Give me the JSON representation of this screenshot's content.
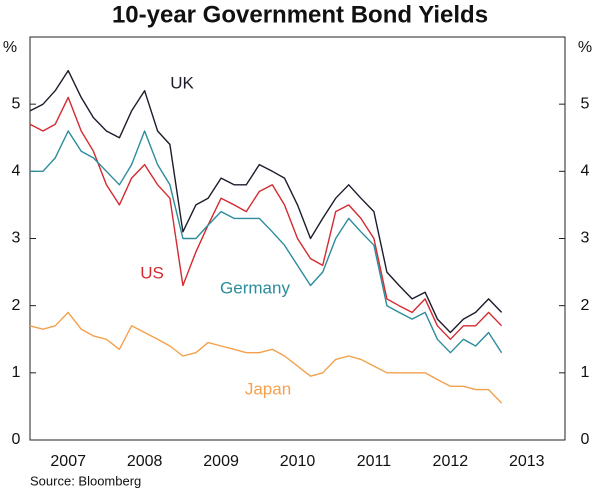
{
  "chart_data": {
    "type": "line",
    "title": "10-year Government Bond Yields",
    "y_label": "%",
    "source": "Source: Bloomberg",
    "x": [
      2007.0,
      2007.17,
      2007.33,
      2007.5,
      2007.67,
      2007.83,
      2008.0,
      2008.17,
      2008.33,
      2008.5,
      2008.67,
      2008.83,
      2009.0,
      2009.17,
      2009.33,
      2009.5,
      2009.67,
      2009.83,
      2010.0,
      2010.17,
      2010.33,
      2010.5,
      2010.67,
      2010.83,
      2011.0,
      2011.17,
      2011.33,
      2011.5,
      2011.67,
      2011.83,
      2012.0,
      2012.17,
      2012.33,
      2012.5,
      2012.67,
      2012.83,
      2013.0,
      2013.17
    ],
    "series": [
      {
        "name": "UK",
        "color": "#1c1c2c",
        "values": [
          4.9,
          5.0,
          5.2,
          5.5,
          5.1,
          4.8,
          4.6,
          4.5,
          4.9,
          5.2,
          4.6,
          4.4,
          3.1,
          3.5,
          3.6,
          3.9,
          3.8,
          3.8,
          4.1,
          4.0,
          3.9,
          3.5,
          3.0,
          3.3,
          3.6,
          3.8,
          3.6,
          3.4,
          2.5,
          2.3,
          2.1,
          2.2,
          1.8,
          1.6,
          1.8,
          1.9,
          2.1,
          1.9
        ]
      },
      {
        "name": "US",
        "color": "#d42a30",
        "values": [
          4.7,
          4.6,
          4.7,
          5.1,
          4.6,
          4.3,
          3.8,
          3.5,
          3.9,
          4.1,
          3.8,
          3.6,
          2.3,
          2.8,
          3.2,
          3.6,
          3.5,
          3.4,
          3.7,
          3.8,
          3.5,
          3.0,
          2.7,
          2.6,
          3.4,
          3.5,
          3.3,
          3.0,
          2.1,
          2.0,
          1.9,
          2.1,
          1.7,
          1.5,
          1.7,
          1.7,
          1.9,
          1.7
        ]
      },
      {
        "name": "Germany",
        "color": "#2b8c9c",
        "values": [
          4.0,
          4.0,
          4.2,
          4.6,
          4.3,
          4.2,
          4.0,
          3.8,
          4.1,
          4.6,
          4.1,
          3.8,
          3.0,
          3.0,
          3.2,
          3.4,
          3.3,
          3.3,
          3.3,
          3.1,
          2.9,
          2.6,
          2.3,
          2.5,
          3.0,
          3.3,
          3.1,
          2.9,
          2.0,
          1.9,
          1.8,
          1.9,
          1.5,
          1.3,
          1.5,
          1.4,
          1.6,
          1.3
        ]
      },
      {
        "name": "Japan",
        "color": "#f4a14c",
        "values": [
          1.7,
          1.65,
          1.7,
          1.9,
          1.65,
          1.55,
          1.5,
          1.35,
          1.7,
          1.6,
          1.5,
          1.4,
          1.25,
          1.3,
          1.45,
          1.4,
          1.35,
          1.3,
          1.3,
          1.35,
          1.25,
          1.1,
          0.95,
          1.0,
          1.2,
          1.25,
          1.2,
          1.1,
          1.0,
          1.0,
          1.0,
          1.0,
          0.9,
          0.8,
          0.8,
          0.75,
          0.75,
          0.55
        ]
      }
    ],
    "xlim": [
      2007,
      2014
    ],
    "xticks": [
      {
        "value": 2007.5,
        "label": "2007"
      },
      {
        "value": 2008.5,
        "label": "2008"
      },
      {
        "value": 2009.5,
        "label": "2009"
      },
      {
        "value": 2010.5,
        "label": "2010"
      },
      {
        "value": 2011.5,
        "label": "2011"
      },
      {
        "value": 2012.5,
        "label": "2012"
      },
      {
        "value": 2013.5,
        "label": "2013"
      }
    ],
    "ylim": [
      0,
      6
    ],
    "yticks": [
      0,
      1,
      2,
      3,
      4,
      5
    ],
    "grid": false
  }
}
